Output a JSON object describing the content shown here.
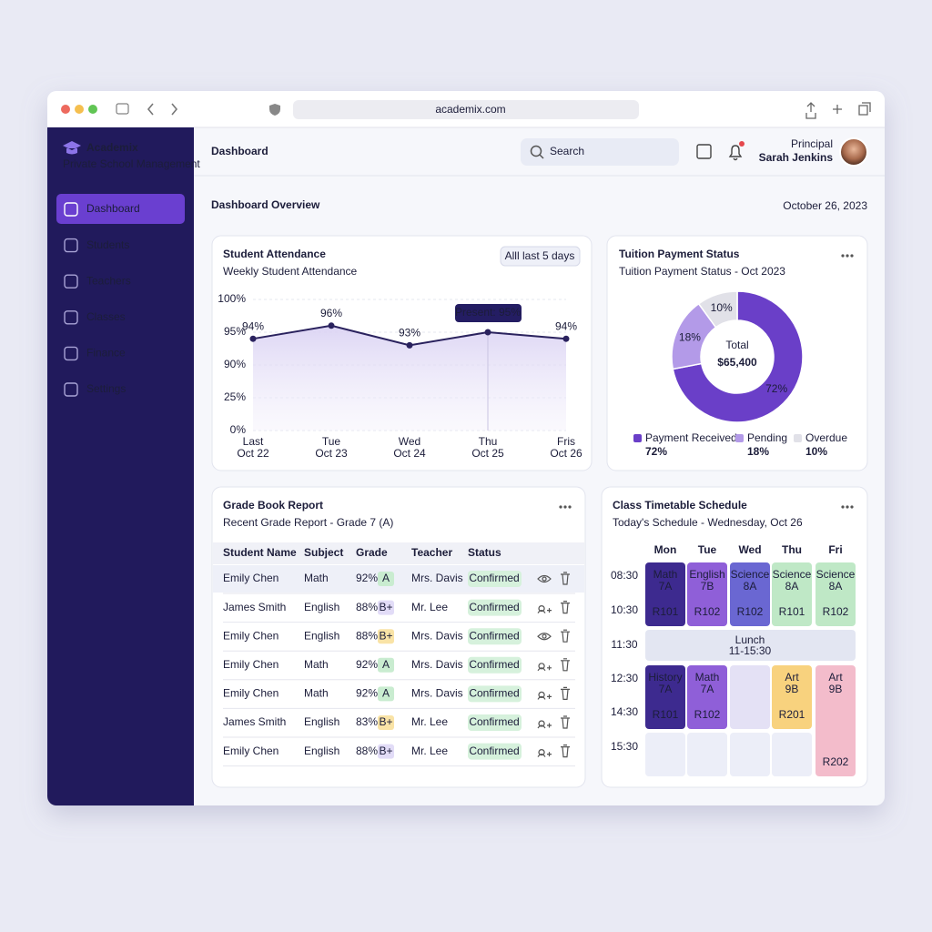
{
  "browser": {
    "url": "academix.com"
  },
  "sidebar": {
    "brand": "Academix",
    "tagline": "Private School Management",
    "nav": [
      "Dashboard",
      "Students",
      "Teachers",
      "Classes",
      "Finance",
      "Settings"
    ]
  },
  "header": {
    "title": "Dashboard",
    "search": "Search",
    "role": "Principal",
    "user": "Sarah Jenkins"
  },
  "overview": {
    "title": "Dashboard Overview",
    "date": "October 26, 2023"
  },
  "chart_data": [
    {
      "type": "line",
      "title": "Student Attendance",
      "subtitle": "Weekly Student Attendance",
      "filter": "Alll last 5 days",
      "categories": [
        "Last",
        "Tue",
        "Wed",
        "Thu",
        "Fris"
      ],
      "dates": [
        "Oct 22",
        "Oct 23",
        "Oct 24",
        "Oct 25",
        "Oct 26"
      ],
      "values": [
        94,
        96,
        93,
        95,
        94
      ],
      "value_labels": [
        "94%",
        "96%",
        "93%",
        null,
        "94%"
      ],
      "tooltip": "Present: 95%",
      "color": "#2a225e",
      "area_color": "#e4def6",
      "grid": true,
      "ylim": [
        0,
        100
      ],
      "yticks": [
        {
          "value": 100,
          "label": "100%"
        },
        {
          "value": 95,
          "label": "95%"
        },
        {
          "value": 90,
          "label": "90%"
        },
        {
          "value": 25,
          "label": "25%"
        },
        {
          "value": 0,
          "label": "0%"
        }
      ]
    },
    {
      "type": "pie",
      "title": "Tuition Payment Status",
      "subtitle": "Tuition Payment Status - Oct 2023",
      "center_label": "Total",
      "center_value": "$65,400",
      "categories": [
        "Payment Received",
        "Pending",
        "Overdue"
      ],
      "values": [
        72,
        18,
        10
      ],
      "value_labels": [
        "72%",
        "18%",
        "10%"
      ],
      "colors": [
        "#6a3fc8",
        "#b39ae8",
        "#e1e1e8"
      ]
    }
  ],
  "grade_book": {
    "title": "Grade Book Report",
    "subtitle": "Recent Grade Report - Grade 7 (A)",
    "columns": [
      "Student Name",
      "Subject",
      "Grade",
      "Teacher",
      "Status"
    ],
    "rows": [
      {
        "name": "Emily Chen",
        "subject": "Math",
        "score": "92%",
        "grade": "A",
        "grade_color": "#c9ecd0",
        "teacher": "Mrs. Davis",
        "status": "Confirmed"
      },
      {
        "name": "James Smith",
        "subject": "English",
        "score": "88%",
        "grade": "B+",
        "grade_color": "#e2dcf7",
        "teacher": "Mr. Lee",
        "status": "Confirmed"
      },
      {
        "name": "Emily Chen",
        "subject": "English",
        "score": "88%",
        "grade": "B+",
        "grade_color": "#f9e3a6",
        "teacher": "Mrs. Davis",
        "status": "Confirmed"
      },
      {
        "name": "Emily Chen",
        "subject": "Math",
        "score": "92%",
        "grade": "A",
        "grade_color": "#c9ecd0",
        "teacher": "Mrs. Davis",
        "status": "Confirmed"
      },
      {
        "name": "Emily Chen",
        "subject": "Math",
        "score": "92%",
        "grade": "A",
        "grade_color": "#c9ecd0",
        "teacher": "Mrs. Davis",
        "status": "Confirmed"
      },
      {
        "name": "James Smith",
        "subject": "English",
        "score": "83%",
        "grade": "B+",
        "grade_color": "#f9e3a6",
        "teacher": "Mr. Lee",
        "status": "Confirmed"
      },
      {
        "name": "Emily Chen",
        "subject": "English",
        "score": "88%",
        "grade": "B+",
        "grade_color": "#e2dcf7",
        "teacher": "Mr. Lee",
        "status": "Confirmed"
      }
    ]
  },
  "timetable": {
    "title": "Class Timetable Schedule",
    "subtitle": "Today's Schedule - Wednesday, Oct 26",
    "days": [
      "Mon",
      "Tue",
      "Wed",
      "Thu",
      "Fri"
    ],
    "times": [
      "08:30",
      "10:30",
      "11:30",
      "12:30",
      "14:30",
      "15:30"
    ],
    "morning": [
      {
        "lines": [
          "Math",
          "7A"
        ],
        "room": "R101",
        "color": "#3d2a8f"
      },
      {
        "lines": [
          "English",
          "7B"
        ],
        "room": "R102",
        "color": "#8f5fd8"
      },
      {
        "lines": [
          "Science",
          "8A"
        ],
        "room": "R102",
        "color": "#6a67d2"
      },
      {
        "lines": [
          "Science",
          "8A"
        ],
        "room": "R101",
        "color": "#bfe8c6"
      },
      {
        "lines": [
          "Science",
          "8A"
        ],
        "room": "R102",
        "color": "#bfe8c6"
      }
    ],
    "lunch": {
      "label": "Lunch",
      "time": "11-15:30"
    },
    "afternoon": [
      {
        "lines": [
          "History",
          "7A"
        ],
        "room": "R101",
        "color": "#3d2a8f"
      },
      {
        "lines": [
          "Math",
          "7A"
        ],
        "room": "R102",
        "color": "#8f5fd8"
      },
      null,
      {
        "lines": [
          "Art",
          "9B"
        ],
        "room": "R201",
        "color": "#f8d27e"
      },
      {
        "lines": [
          "Art",
          "9B"
        ],
        "room": "R202",
        "color": "#f3bccb"
      }
    ]
  }
}
